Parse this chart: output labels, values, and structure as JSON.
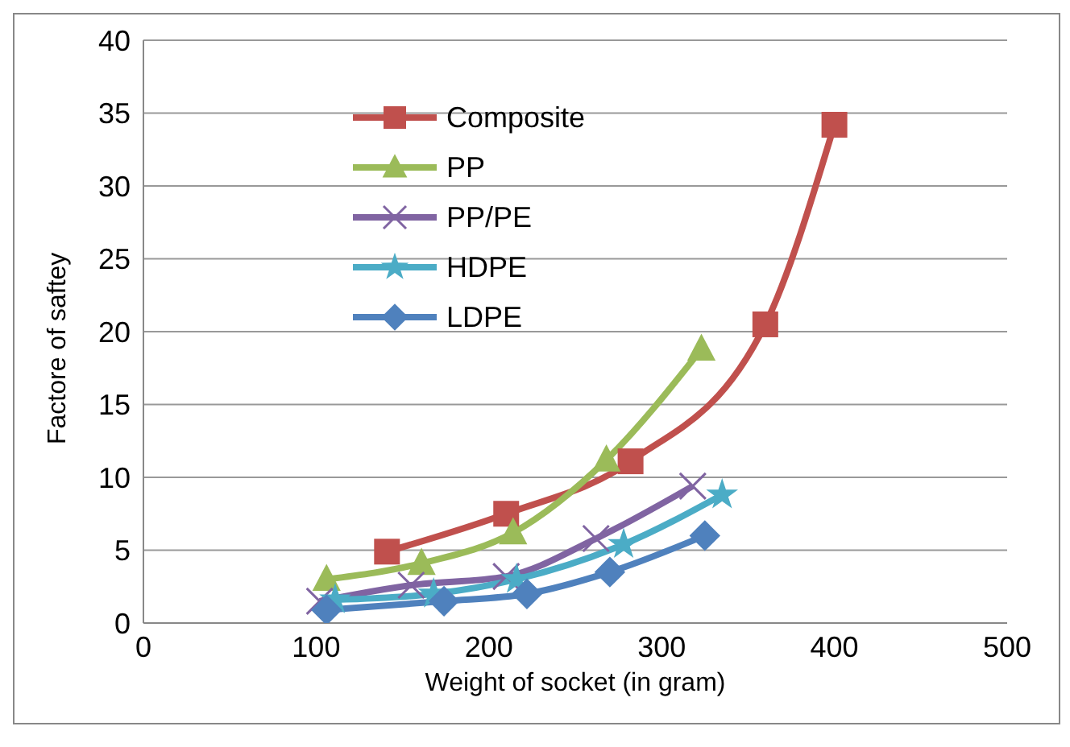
{
  "chart_data": {
    "type": "line",
    "xlabel": "Weight of socket (in gram)",
    "ylabel": "Factore of saftey",
    "xlim": [
      0,
      500
    ],
    "xticks": [
      0,
      100,
      200,
      300,
      400,
      500
    ],
    "ylim": [
      0,
      40
    ],
    "yticks": [
      0,
      5,
      10,
      15,
      20,
      25,
      30,
      35,
      40
    ],
    "grid": "y",
    "legend": "top left",
    "series": [
      {
        "name": "Composite",
        "color": "#c0504d",
        "marker": "square",
        "x": [
          141,
          210,
          282,
          360,
          400
        ],
        "values": [
          4.9,
          7.5,
          11.1,
          20.5,
          34.2
        ]
      },
      {
        "name": "PP",
        "color": "#9bbb59",
        "marker": "triangle",
        "x": [
          106,
          161,
          214,
          268,
          323
        ],
        "values": [
          3.0,
          4.1,
          6.2,
          11.2,
          18.8
        ]
      },
      {
        "name": "PP/PE",
        "color": "#8064a2",
        "marker": "cross",
        "x": [
          102,
          155,
          210,
          262,
          318
        ],
        "values": [
          1.5,
          2.6,
          3.2,
          5.8,
          9.4
        ]
      },
      {
        "name": "HDPE",
        "color": "#4bacc6",
        "marker": "star",
        "x": [
          111,
          168,
          216,
          278,
          335
        ],
        "values": [
          1.6,
          2.0,
          3.0,
          5.4,
          8.8
        ]
      },
      {
        "name": "LDPE",
        "color": "#4f81bd",
        "marker": "diamond",
        "x": [
          106,
          174,
          222,
          270,
          325
        ],
        "values": [
          0.9,
          1.5,
          2.0,
          3.5,
          6.0
        ]
      }
    ]
  }
}
